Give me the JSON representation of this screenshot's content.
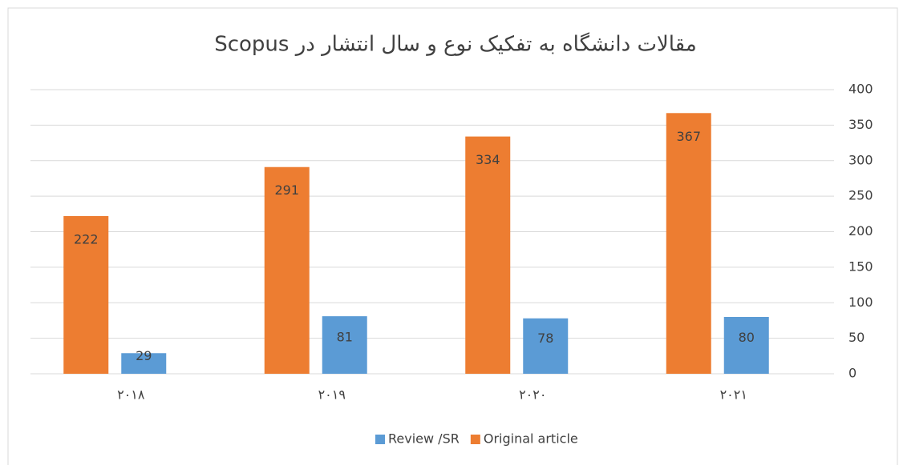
{
  "chart_data": {
    "type": "bar",
    "title": "مقالات دانشگاه به تفکیک نوع و سال انتشار در Scopus",
    "categories": [
      "۲۰۱۸",
      "۲۰۱۹",
      "۲۰۲۰",
      "۲۰۲۱"
    ],
    "series": [
      {
        "name": "Review /SR",
        "color": "#5b9bd5",
        "values": [
          29,
          81,
          78,
          80
        ]
      },
      {
        "name": "Original article",
        "color": "#ed7d31",
        "values": [
          222,
          291,
          334,
          367
        ]
      }
    ],
    "ylim": [
      0,
      400
    ],
    "yticks": [
      0,
      50,
      100,
      150,
      200,
      250,
      300,
      350,
      400
    ],
    "grid": true,
    "legend": "bottom"
  }
}
